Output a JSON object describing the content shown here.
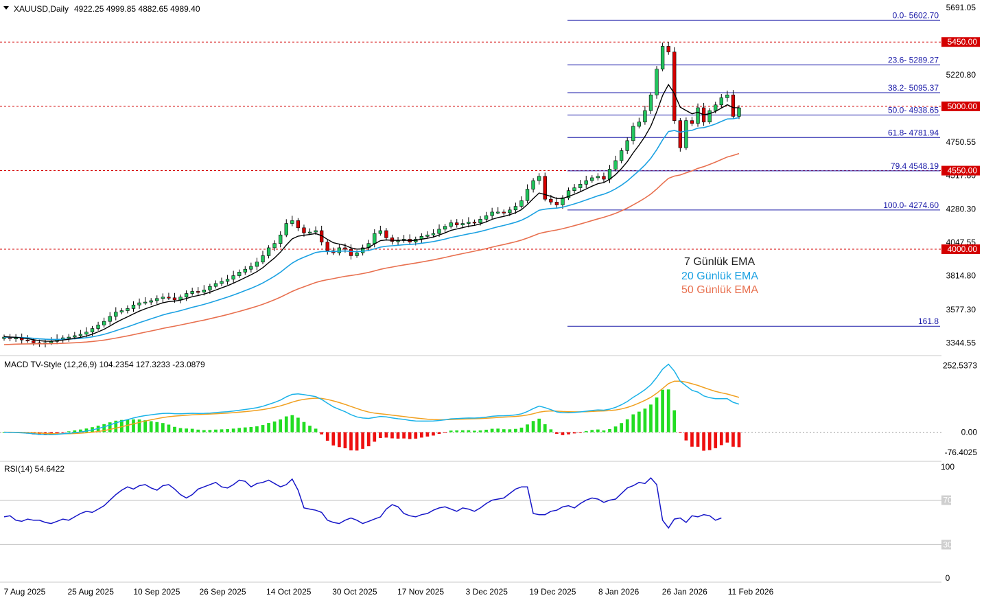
{
  "header": {
    "symbol": "XAUUSD,Daily",
    "ohlc": "4922.25 4999.85 4882.65 4989.40"
  },
  "macd_header": "MACD TV-Style (12,26,9) 104.2354 127.3233 -23.0879",
  "rsi_header": "RSI(14) 54.6422",
  "legend": {
    "ema7": "7 Günlük EMA",
    "ema20": "20 Günlük EMA",
    "ema50": "50 Günlük EMA"
  },
  "colors": {
    "bull": "#22c55e",
    "bear": "#d40000",
    "ema7": "#000000",
    "ema20": "#1ba1e2",
    "ema50": "#e8704f",
    "fib": "#1a1aa8",
    "level": "#d40000",
    "macd": "#1ab2e8",
    "signal": "#f0a020",
    "rsi": "#1616c8"
  },
  "chart_data": [
    {
      "type": "candlestick",
      "symbol": "XAUUSD",
      "timeframe": "Daily",
      "ylim": [
        3270,
        5720
      ],
      "y_ticks": [
        "5691.05",
        "5220.80",
        "4750.55",
        "4517.80",
        "4280.30",
        "4047.55",
        "3814.80",
        "3577.30",
        "3344.55"
      ],
      "x_tick_labels": [
        "7 Aug 2025",
        "25 Aug 2025",
        "10 Sep 2025",
        "26 Sep 2025",
        "14 Oct 2025",
        "30 Oct 2025",
        "17 Nov 2025",
        "3 Dec 2025",
        "19 Dec 2025",
        "8 Jan 2026",
        "26 Jan 2026",
        "11 Feb 2026"
      ],
      "price_levels": [
        {
          "value": 5450,
          "label": "5450.00"
        },
        {
          "value": 5000,
          "label": "5000.00"
        },
        {
          "value": 4550,
          "label": "4550.00"
        },
        {
          "value": 4000,
          "label": "4000.00"
        }
      ],
      "fibonacci": [
        {
          "value": 5602.7,
          "label": "0.0- 5602.70"
        },
        {
          "value": 5289.27,
          "label": "23.6- 5289.27"
        },
        {
          "value": 5095.37,
          "label": "38.2- 5095.37"
        },
        {
          "value": 4938.65,
          "label": "50.0- 4938.65"
        },
        {
          "value": 4781.94,
          "label": "61.8- 4781.94"
        },
        {
          "value": 4548.19,
          "label": "79.4 4548.19"
        },
        {
          "value": 4274.6,
          "label": "100.0- 4274.60"
        },
        {
          "value": 3461.0,
          "label": "161.8"
        }
      ],
      "closes": [
        3385,
        3375,
        3380,
        3365,
        3360,
        3345,
        3340,
        3345,
        3355,
        3370,
        3380,
        3385,
        3395,
        3405,
        3420,
        3445,
        3470,
        3495,
        3530,
        3560,
        3570,
        3585,
        3610,
        3625,
        3630,
        3640,
        3655,
        3665,
        3660,
        3645,
        3665,
        3690,
        3705,
        3700,
        3715,
        3740,
        3760,
        3775,
        3790,
        3815,
        3840,
        3860,
        3880,
        3910,
        3955,
        4010,
        4040,
        4100,
        4180,
        4200,
        4150,
        4115,
        4120,
        4130,
        4050,
        3990,
        3975,
        4010,
        4000,
        3955,
        3975,
        4010,
        4040,
        4110,
        4130,
        4080,
        4055,
        4060,
        4070,
        4050,
        4070,
        4090,
        4100,
        4110,
        4140,
        4160,
        4185,
        4170,
        4180,
        4190,
        4185,
        4210,
        4235,
        4260,
        4260,
        4255,
        4275,
        4300,
        4340,
        4420,
        4480,
        4510,
        4350,
        4330,
        4310,
        4360,
        4410,
        4430,
        4455,
        4480,
        4500,
        4510,
        4490,
        4560,
        4620,
        4690,
        4760,
        4860,
        4890,
        4970,
        5080,
        5260,
        5420,
        5380,
        4900,
        4710,
        4900,
        4880,
        4990,
        4890,
        4970,
        5010,
        5060,
        5080,
        4930,
        4989
      ],
      "ema7_start": 3390,
      "ema7_end": 4985,
      "ema20_start": 3385,
      "ema20_end": 4890,
      "ema50_start": 3330,
      "ema50_end": 4640
    },
    {
      "type": "bar",
      "title": "MACD TV-Style (12,26,9)",
      "macd": 104.2354,
      "signal": 127.3233,
      "histogram": -23.0879,
      "ylim": [
        -100,
        280
      ],
      "y_ticks": [
        "252.5373",
        "0.00",
        "-76.4025"
      ]
    },
    {
      "type": "line",
      "title": "RSI(14)",
      "value": 54.6422,
      "ylim": [
        0,
        100
      ],
      "levels": [
        70,
        30
      ],
      "y_ticks": [
        "100",
        "70",
        "30",
        "0"
      ],
      "values": [
        55,
        56,
        52,
        51,
        53,
        52,
        52,
        50,
        49,
        51,
        53,
        52,
        55,
        58,
        60,
        59,
        62,
        65,
        70,
        75,
        79,
        82,
        80,
        83,
        84,
        81,
        79,
        83,
        84,
        80,
        75,
        72,
        75,
        80,
        82,
        84,
        86,
        82,
        81,
        84,
        88,
        87,
        82,
        85,
        86,
        88,
        85,
        82,
        84,
        89,
        79,
        63,
        62,
        61,
        59,
        52,
        50,
        49,
        52,
        54,
        52,
        49,
        51,
        53,
        55,
        62,
        66,
        64,
        58,
        56,
        55,
        57,
        58,
        61,
        63,
        64,
        62,
        60,
        63,
        62,
        60,
        63,
        67,
        70,
        71,
        72,
        76,
        80,
        82,
        82,
        58,
        57,
        57,
        60,
        61,
        64,
        65,
        63,
        67,
        70,
        72,
        71,
        68,
        70,
        71,
        76,
        81,
        83,
        86,
        85,
        90,
        84,
        52,
        45,
        53,
        54,
        50,
        56,
        55,
        57,
        56,
        52,
        54
      ],
      "rsi_last": 54.64
    }
  ]
}
